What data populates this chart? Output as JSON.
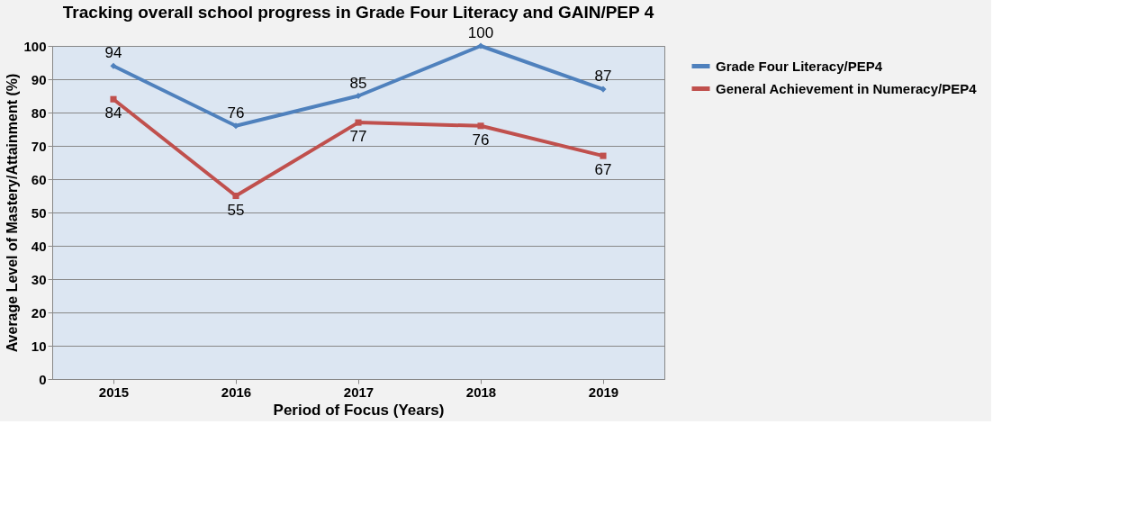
{
  "chart_data": {
    "type": "line",
    "title": "Tracking overall school progress in Grade Four Literacy and GAIN/PEP  4",
    "xlabel": "Period of Focus (Years)",
    "ylabel": "Average Level of Mastery/Attainment (%)",
    "categories": [
      "2015",
      "2016",
      "2017",
      "2018",
      "2019"
    ],
    "series": [
      {
        "name": "Grade Four Literacy/PEP4",
        "color": "#4f81bd",
        "marker": "diamond",
        "values": [
          94,
          76,
          85,
          100,
          87
        ]
      },
      {
        "name": "General Achievement in Numeracy/PEP4",
        "color": "#c0504d",
        "marker": "square",
        "values": [
          84,
          55,
          77,
          76,
          67
        ]
      }
    ],
    "ylim": [
      0,
      100
    ],
    "yticks": [
      0,
      10,
      20,
      30,
      40,
      50,
      60,
      70,
      80,
      90,
      100
    ],
    "grid": "y",
    "legend": "right",
    "data_labels": true,
    "line_style": "solid"
  }
}
